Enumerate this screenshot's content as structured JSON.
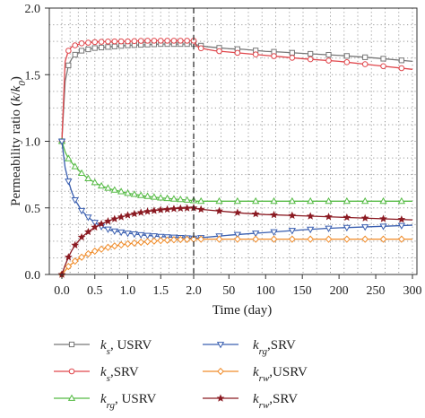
{
  "chart_data": {
    "type": "line",
    "xlabel": "Time (day)",
    "ylabel_prefix": "Permeability ratio (",
    "ylabel_k": "k",
    "ylabel_slash": "/",
    "ylabel_k0": "k",
    "ylabel_sub0": "0",
    "ylabel_suffix": ")",
    "ylim": [
      0.0,
      2.0
    ],
    "y_ticks": [
      "0.0",
      "0.5",
      "1.0",
      "1.5",
      "2.0"
    ],
    "x_segments": [
      {
        "range": [
          0.0,
          2.0
        ],
        "ticks": [
          "0.0",
          "0.5",
          "1.0",
          "1.5",
          "2.0"
        ]
      },
      {
        "range": [
          2.0,
          300
        ],
        "ticks": [
          "50",
          "100",
          "150",
          "200",
          "250",
          "300"
        ]
      }
    ],
    "divider_x": 2.0,
    "grid": "dotted",
    "legend_placement": "bottom",
    "series": [
      {
        "k": "k",
        "sub": "s",
        "suffix": ", USRV",
        "color": "#777777",
        "marker": "square",
        "points": [
          [
            0,
            1.0
          ],
          [
            0.05,
            1.45
          ],
          [
            0.1,
            1.57
          ],
          [
            0.15,
            1.62
          ],
          [
            0.2,
            1.65
          ],
          [
            0.3,
            1.68
          ],
          [
            0.4,
            1.69
          ],
          [
            0.5,
            1.7
          ],
          [
            0.75,
            1.71
          ],
          [
            1.0,
            1.72
          ],
          [
            1.25,
            1.725
          ],
          [
            1.5,
            1.73
          ],
          [
            1.75,
            1.73
          ],
          [
            2.0,
            1.73
          ],
          [
            10,
            1.72
          ],
          [
            20,
            1.71
          ],
          [
            30,
            1.705
          ],
          [
            50,
            1.695
          ],
          [
            70,
            1.69
          ],
          [
            100,
            1.675
          ],
          [
            120,
            1.67
          ],
          [
            150,
            1.66
          ],
          [
            200,
            1.645
          ],
          [
            250,
            1.625
          ],
          [
            300,
            1.6
          ]
        ]
      },
      {
        "k": "k",
        "sub": "s",
        "suffix": ",SRV",
        "color": "#e0474c",
        "marker": "circle",
        "points": [
          [
            0,
            1.0
          ],
          [
            0.05,
            1.6
          ],
          [
            0.1,
            1.68
          ],
          [
            0.15,
            1.71
          ],
          [
            0.2,
            1.72
          ],
          [
            0.3,
            1.735
          ],
          [
            0.4,
            1.74
          ],
          [
            0.5,
            1.745
          ],
          [
            0.75,
            1.75
          ],
          [
            1.0,
            1.75
          ],
          [
            1.25,
            1.755
          ],
          [
            1.5,
            1.755
          ],
          [
            1.75,
            1.755
          ],
          [
            2.0,
            1.755
          ],
          [
            5,
            1.72
          ],
          [
            10,
            1.7
          ],
          [
            20,
            1.69
          ],
          [
            30,
            1.68
          ],
          [
            50,
            1.67
          ],
          [
            70,
            1.66
          ],
          [
            100,
            1.645
          ],
          [
            120,
            1.635
          ],
          [
            150,
            1.62
          ],
          [
            200,
            1.6
          ],
          [
            250,
            1.57
          ],
          [
            300,
            1.54
          ]
        ]
      },
      {
        "k": "k",
        "sub": "rg",
        "suffix": ", USRV",
        "color": "#55bb44",
        "marker": "triangle-up",
        "points": [
          [
            0,
            1.0
          ],
          [
            0.05,
            0.92
          ],
          [
            0.1,
            0.87
          ],
          [
            0.2,
            0.81
          ],
          [
            0.3,
            0.76
          ],
          [
            0.4,
            0.72
          ],
          [
            0.5,
            0.69
          ],
          [
            0.6,
            0.665
          ],
          [
            0.75,
            0.64
          ],
          [
            1.0,
            0.61
          ],
          [
            1.25,
            0.59
          ],
          [
            1.5,
            0.575
          ],
          [
            1.75,
            0.565
          ],
          [
            2.0,
            0.555
          ],
          [
            5,
            0.55
          ],
          [
            10,
            0.55
          ],
          [
            20,
            0.55
          ],
          [
            30,
            0.55
          ],
          [
            50,
            0.55
          ],
          [
            100,
            0.55
          ],
          [
            150,
            0.55
          ],
          [
            200,
            0.55
          ],
          [
            250,
            0.55
          ],
          [
            300,
            0.55
          ]
        ]
      },
      {
        "k": "k",
        "sub": "rg",
        "suffix": ",SRV",
        "color": "#3a5fb0",
        "marker": "triangle-down",
        "points": [
          [
            0,
            1.0
          ],
          [
            0.05,
            0.8
          ],
          [
            0.1,
            0.7
          ],
          [
            0.15,
            0.62
          ],
          [
            0.2,
            0.56
          ],
          [
            0.3,
            0.48
          ],
          [
            0.4,
            0.43
          ],
          [
            0.5,
            0.39
          ],
          [
            0.6,
            0.36
          ],
          [
            0.75,
            0.33
          ],
          [
            1.0,
            0.31
          ],
          [
            1.25,
            0.295
          ],
          [
            1.5,
            0.285
          ],
          [
            1.75,
            0.278
          ],
          [
            2.0,
            0.272
          ],
          [
            10,
            0.275
          ],
          [
            30,
            0.285
          ],
          [
            50,
            0.295
          ],
          [
            75,
            0.305
          ],
          [
            100,
            0.315
          ],
          [
            125,
            0.325
          ],
          [
            150,
            0.335
          ],
          [
            180,
            0.345
          ],
          [
            200,
            0.35
          ],
          [
            250,
            0.36
          ],
          [
            300,
            0.37
          ]
        ]
      },
      {
        "k": "k",
        "sub": "rw",
        "suffix": ",USRV",
        "color": "#f08c2a",
        "marker": "diamond",
        "points": [
          [
            0,
            0.0
          ],
          [
            0.05,
            0.03
          ],
          [
            0.1,
            0.06
          ],
          [
            0.15,
            0.08
          ],
          [
            0.2,
            0.1
          ],
          [
            0.3,
            0.13
          ],
          [
            0.4,
            0.155
          ],
          [
            0.5,
            0.175
          ],
          [
            0.6,
            0.19
          ],
          [
            0.75,
            0.21
          ],
          [
            1.0,
            0.23
          ],
          [
            1.25,
            0.245
          ],
          [
            1.5,
            0.255
          ],
          [
            1.75,
            0.262
          ],
          [
            2.0,
            0.265
          ],
          [
            10,
            0.265
          ],
          [
            50,
            0.265
          ],
          [
            100,
            0.265
          ],
          [
            150,
            0.265
          ],
          [
            200,
            0.265
          ],
          [
            250,
            0.265
          ],
          [
            300,
            0.265
          ]
        ]
      },
      {
        "k": "k",
        "sub": "rw",
        "suffix": ",SRV",
        "color": "#8b1a22",
        "marker": "star",
        "points": [
          [
            0,
            0.0
          ],
          [
            0.05,
            0.07
          ],
          [
            0.1,
            0.13
          ],
          [
            0.15,
            0.18
          ],
          [
            0.2,
            0.22
          ],
          [
            0.3,
            0.28
          ],
          [
            0.4,
            0.32
          ],
          [
            0.5,
            0.355
          ],
          [
            0.6,
            0.38
          ],
          [
            0.75,
            0.41
          ],
          [
            1.0,
            0.445
          ],
          [
            1.25,
            0.47
          ],
          [
            1.5,
            0.485
          ],
          [
            1.75,
            0.495
          ],
          [
            2.0,
            0.5
          ],
          [
            5,
            0.495
          ],
          [
            10,
            0.49
          ],
          [
            20,
            0.485
          ],
          [
            30,
            0.48
          ],
          [
            50,
            0.47
          ],
          [
            70,
            0.46
          ],
          [
            100,
            0.45
          ],
          [
            150,
            0.44
          ],
          [
            200,
            0.43
          ],
          [
            250,
            0.42
          ],
          [
            300,
            0.41
          ]
        ]
      }
    ]
  }
}
